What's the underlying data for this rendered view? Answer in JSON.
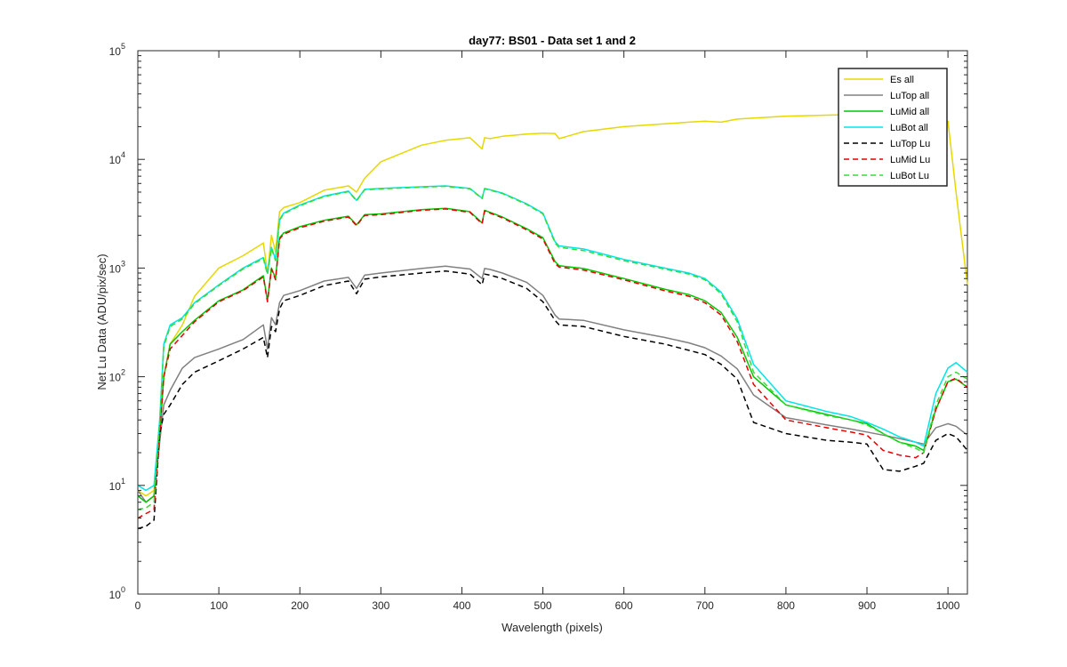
{
  "chart_data": {
    "type": "line",
    "title": "day77: BS01 - Data set 1 and 2",
    "xlabel": "Wavelength (pixels)",
    "ylabel": "Net Lu Data (ADU/pix/sec)",
    "xlim": [
      0,
      1024
    ],
    "ylim": [
      1,
      100000
    ],
    "yscale": "log",
    "grid": false,
    "legend_position": "top-right",
    "xticks": [
      "0",
      "100",
      "200",
      "300",
      "400",
      "500",
      "600",
      "700",
      "800",
      "900",
      "1000"
    ],
    "yticks": [
      {
        "base": "10",
        "exp": "0"
      },
      {
        "base": "10",
        "exp": "1"
      },
      {
        "base": "10",
        "exp": "2"
      },
      {
        "base": "10",
        "exp": "3"
      },
      {
        "base": "10",
        "exp": "4"
      },
      {
        "base": "10",
        "exp": "5"
      }
    ],
    "x": [
      0,
      10,
      20,
      27,
      32,
      40,
      55,
      70,
      100,
      130,
      155,
      160,
      165,
      170,
      175,
      180,
      200,
      230,
      260,
      270,
      280,
      300,
      350,
      380,
      410,
      425,
      428,
      435,
      450,
      480,
      500,
      515,
      520,
      550,
      600,
      650,
      680,
      700,
      720,
      740,
      760,
      800,
      850,
      880,
      900,
      920,
      940,
      960,
      970,
      985,
      1000,
      1010,
      1024
    ],
    "series": [
      {
        "name": "Es  all",
        "color": "#e6d800",
        "dash": "solid",
        "values": [
          9,
          8,
          9,
          30,
          100,
          200,
          300,
          550,
          1000,
          1300,
          1700,
          900,
          2000,
          1400,
          3300,
          3600,
          4000,
          5200,
          5700,
          5000,
          6700,
          9500,
          13500,
          15000,
          15800,
          12500,
          15800,
          15500,
          16300,
          17100,
          17400,
          17300,
          15500,
          18000,
          20000,
          21200,
          22000,
          22500,
          22000,
          23500,
          24000,
          25000,
          25500,
          25800,
          25500,
          25000,
          24800,
          24500,
          24200,
          23000,
          22500,
          5000,
          700
        ]
      },
      {
        "name": "LuTop  all",
        "color": "#808080",
        "dash": "solid",
        "values": [
          9,
          7,
          8,
          25,
          55,
          75,
          120,
          150,
          180,
          220,
          300,
          180,
          350,
          300,
          480,
          560,
          620,
          760,
          820,
          650,
          860,
          900,
          990,
          1040,
          980,
          800,
          990,
          970,
          900,
          740,
          560,
          370,
          340,
          330,
          270,
          230,
          205,
          185,
          155,
          118,
          68,
          42,
          36,
          33,
          31,
          29,
          27,
          25,
          24,
          34,
          37,
          35,
          29
        ]
      },
      {
        "name": "LuMid  all",
        "color": "#00c800",
        "dash": "solid",
        "values": [
          8,
          7,
          8,
          30,
          100,
          200,
          260,
          330,
          500,
          630,
          850,
          500,
          1000,
          800,
          1900,
          2100,
          2400,
          2750,
          3000,
          2500,
          3100,
          3150,
          3450,
          3550,
          3300,
          2600,
          3400,
          3250,
          2950,
          2300,
          1900,
          1150,
          1050,
          990,
          800,
          640,
          570,
          500,
          390,
          230,
          100,
          55,
          45,
          40,
          37,
          30,
          25,
          23,
          21,
          50,
          90,
          95,
          80
        ]
      },
      {
        "name": "LuBot  all",
        "color": "#00e6e6",
        "dash": "solid",
        "values": [
          10,
          9,
          10,
          40,
          200,
          300,
          350,
          480,
          700,
          1000,
          1250,
          900,
          1550,
          1200,
          2800,
          3200,
          3800,
          4600,
          5100,
          4200,
          5300,
          5400,
          5600,
          5700,
          5400,
          4400,
          5400,
          5250,
          4900,
          3900,
          3200,
          1750,
          1600,
          1500,
          1200,
          1000,
          900,
          800,
          600,
          340,
          130,
          60,
          48,
          43,
          38,
          33,
          28,
          25,
          23,
          70,
          120,
          135,
          110
        ]
      },
      {
        "name": "LuTop  Lu",
        "color": "#000000",
        "dash": "dashed",
        "values": [
          4,
          4.2,
          4.8,
          30,
          45,
          55,
          85,
          110,
          140,
          180,
          230,
          150,
          290,
          260,
          420,
          500,
          560,
          690,
          760,
          580,
          790,
          830,
          900,
          940,
          880,
          700,
          880,
          860,
          800,
          650,
          490,
          330,
          300,
          290,
          235,
          200,
          175,
          160,
          130,
          95,
          38,
          30,
          26,
          25,
          24,
          14,
          13.5,
          15,
          16,
          26,
          30,
          28,
          21
        ]
      },
      {
        "name": "LuMid  Lu",
        "color": "#e60000",
        "dash": "dashed",
        "values": [
          5,
          5.5,
          6,
          30,
          100,
          180,
          240,
          320,
          490,
          620,
          830,
          490,
          980,
          780,
          1850,
          2050,
          2350,
          2700,
          2950,
          2450,
          3050,
          3100,
          3400,
          3500,
          3250,
          2550,
          3350,
          3200,
          2900,
          2250,
          1850,
          1100,
          1020,
          960,
          780,
          620,
          550,
          480,
          370,
          210,
          85,
          40,
          34,
          31,
          29,
          21,
          19,
          18,
          20,
          50,
          90,
          97,
          80
        ]
      },
      {
        "name": "LuBot  Lu",
        "color": "#33dd33",
        "dash": "dashed",
        "values": [
          6,
          6.2,
          7,
          38,
          190,
          290,
          340,
          470,
          690,
          980,
          1220,
          870,
          1520,
          1170,
          2750,
          3150,
          3750,
          4550,
          5050,
          4150,
          5250,
          5350,
          5550,
          5650,
          5350,
          4350,
          5350,
          5200,
          4850,
          3850,
          3150,
          1700,
          1550,
          1450,
          1170,
          980,
          880,
          780,
          580,
          320,
          110,
          55,
          44,
          40,
          36,
          30,
          25,
          22,
          20,
          55,
          100,
          110,
          95
        ]
      }
    ]
  }
}
